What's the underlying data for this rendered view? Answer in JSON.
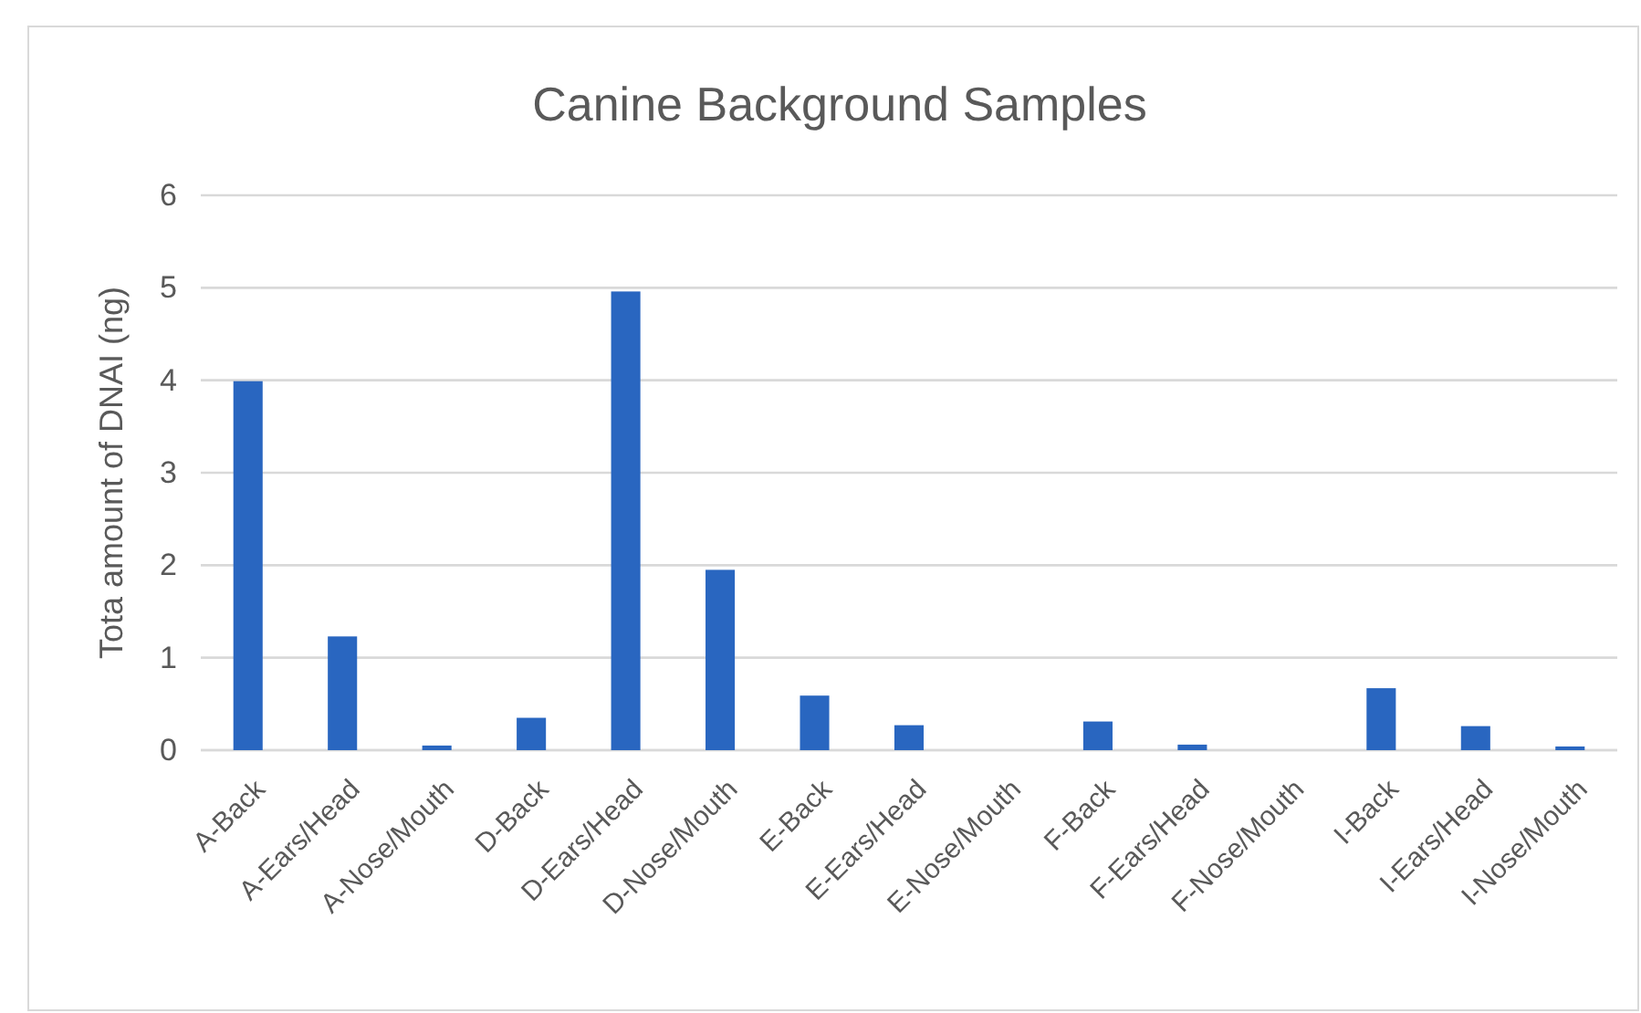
{
  "chart_data": {
    "type": "bar",
    "title": "Canine Background Samples",
    "ylabel": "Tota amount of DNAI (ng)",
    "categories": [
      "A-Back",
      "A-Ears/Head",
      "A-Nose/Mouth",
      "D-Back",
      "D-Ears/Head",
      "D-Nose/Mouth",
      "E-Back",
      "E-Ears/Head",
      "E-Nose/Mouth",
      "F-Back",
      "F-Ears/Head",
      "F-Nose/Mouth",
      "I-Back",
      "I-Ears/Head",
      "I-Nose/Mouth"
    ],
    "values": [
      3.99,
      1.23,
      0.05,
      0.35,
      4.96,
      1.95,
      0.59,
      0.27,
      0,
      0.31,
      0.06,
      0,
      0.67,
      0.26,
      0.04
    ],
    "color": "#2966c0",
    "ylim": [
      0,
      6
    ],
    "yticks": [
      0,
      1,
      2,
      3,
      4,
      5,
      6
    ],
    "grid": "y"
  }
}
